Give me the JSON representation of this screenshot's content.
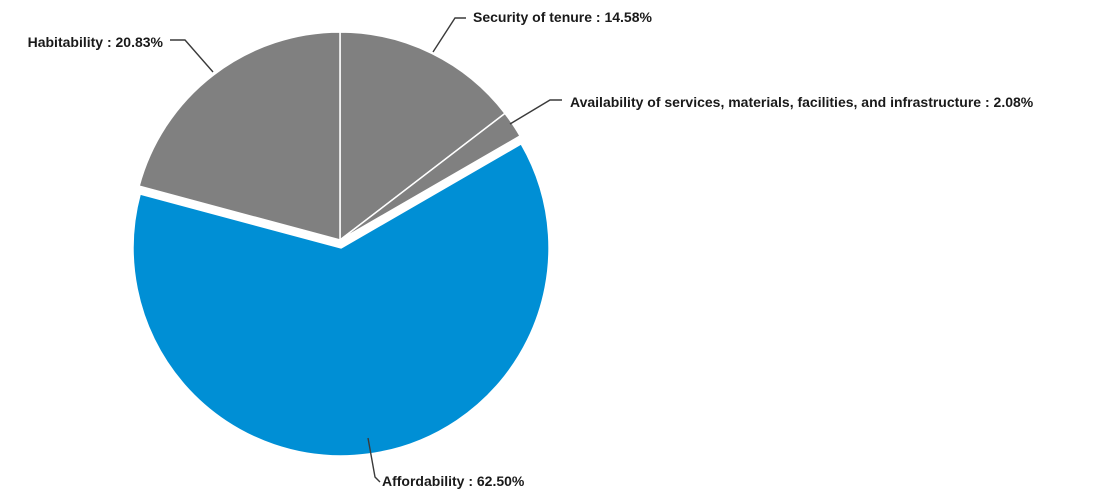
{
  "chart_data": {
    "type": "pie",
    "title": "",
    "separator": " : ",
    "slices": [
      {
        "label": "Security of tenure",
        "value": 14.58,
        "value_text": "14.58%",
        "color": "#808080"
      },
      {
        "label": "Availability of services, materials, facilities, and infrastructure",
        "value": 2.08,
        "value_text": "2.08%",
        "color": "#808080"
      },
      {
        "label": "Affordability",
        "value": 62.5,
        "value_text": "62.50%",
        "color": "#008fd5",
        "exploded": true
      },
      {
        "label": "Habitability",
        "value": 20.83,
        "value_text": "20.83%",
        "color": "#808080"
      }
    ],
    "slice_border_color": "#ffffff",
    "leader_color": "#3a3a3a",
    "legend": "none"
  }
}
